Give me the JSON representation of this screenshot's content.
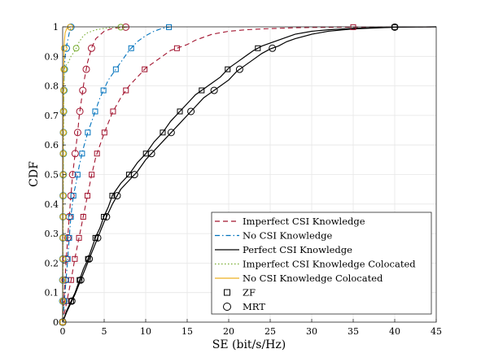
{
  "chart_data": {
    "type": "line",
    "xlabel": "SE (bit/s/Hz)",
    "ylabel": "CDF",
    "xlim": [
      0,
      45
    ],
    "ylim": [
      0,
      1
    ],
    "xticks": [
      "0",
      "5",
      "10",
      "15",
      "20",
      "25",
      "30",
      "35",
      "40",
      "45"
    ],
    "yticks": [
      "0",
      "0.1",
      "0.2",
      "0.3",
      "0.4",
      "0.5",
      "0.6",
      "0.7",
      "0.8",
      "0.9",
      "1"
    ],
    "grid": true,
    "legend_position": "bottom-right",
    "colors": {
      "imperfect": "#a2142f",
      "no_csi": "#0072bd",
      "perfect": "#000000",
      "imperfect_colocated": "#77ac30",
      "no_csi_colocated": "#edb120"
    },
    "series": [
      {
        "name": "Imperfect CSI Knowledge",
        "key": "imperfect",
        "dash": "dashed",
        "precoder": "ZF",
        "x": [
          0,
          0.5,
          1,
          1.5,
          2,
          2.5,
          3,
          3.5,
          4,
          4.5,
          5,
          6,
          7,
          8,
          9,
          10,
          11,
          12,
          13,
          14,
          15,
          16,
          17,
          18,
          19,
          20,
          22,
          24,
          26,
          28,
          30,
          35,
          45
        ],
        "y": [
          0,
          0.07,
          0.14,
          0.22,
          0.29,
          0.36,
          0.43,
          0.5,
          0.56,
          0.6,
          0.64,
          0.71,
          0.76,
          0.8,
          0.83,
          0.86,
          0.88,
          0.9,
          0.92,
          0.93,
          0.94,
          0.955,
          0.965,
          0.975,
          0.98,
          0.985,
          0.99,
          0.993,
          0.995,
          0.997,
          0.998,
          0.999,
          1
        ]
      },
      {
        "name": "",
        "key": "imperfect",
        "dash": "dashed",
        "precoder": "MRT",
        "x": [
          0,
          0.2,
          0.4,
          0.6,
          0.8,
          1,
          1.2,
          1.5,
          1.8,
          2,
          2.3,
          2.6,
          3,
          3.5,
          4,
          5,
          6,
          8
        ],
        "y": [
          0,
          0.1,
          0.2,
          0.28,
          0.36,
          0.43,
          0.5,
          0.57,
          0.64,
          0.7,
          0.76,
          0.82,
          0.88,
          0.93,
          0.96,
          0.985,
          0.995,
          1
        ]
      },
      {
        "name": "No CSI Knowledge",
        "key": "no_csi",
        "dash": "dashdot",
        "precoder": "ZF",
        "x": [
          0,
          0.2,
          0.4,
          0.6,
          0.8,
          1,
          1.3,
          1.6,
          2,
          2.5,
          3,
          3.5,
          4,
          4.5,
          5,
          5.5,
          6,
          6.5,
          7,
          7.5,
          8,
          8.5,
          9,
          9.5,
          10,
          11,
          12,
          13
        ],
        "y": [
          0,
          0.07,
          0.14,
          0.21,
          0.29,
          0.36,
          0.43,
          0.47,
          0.53,
          0.59,
          0.64,
          0.68,
          0.72,
          0.76,
          0.79,
          0.82,
          0.84,
          0.86,
          0.88,
          0.9,
          0.92,
          0.935,
          0.95,
          0.96,
          0.97,
          0.985,
          0.995,
          1
        ]
      },
      {
        "name": "",
        "key": "no_csi",
        "dash": "dashdot",
        "precoder": "MRT",
        "x": [
          0,
          0.02,
          0.05,
          0.08,
          0.1,
          0.15,
          0.2,
          0.3,
          0.5,
          0.8,
          1
        ],
        "y": [
          0,
          0.2,
          0.4,
          0.6,
          0.7,
          0.8,
          0.86,
          0.9,
          0.94,
          0.98,
          1
        ]
      },
      {
        "name": "Perfect CSI Knowledge",
        "key": "perfect",
        "dash": "solid",
        "precoder": "ZF",
        "x": [
          0,
          0.5,
          1,
          1.5,
          2,
          2.5,
          3,
          3.5,
          4,
          4.5,
          5,
          5.5,
          6,
          7,
          8,
          9,
          10,
          11,
          12,
          13,
          14,
          15,
          16,
          17,
          18,
          19,
          20,
          21,
          22,
          23,
          24,
          25,
          26,
          27,
          28,
          30,
          32,
          35,
          40,
          45
        ],
        "y": [
          0,
          0.04,
          0.07,
          0.1,
          0.14,
          0.18,
          0.21,
          0.25,
          0.29,
          0.32,
          0.36,
          0.39,
          0.43,
          0.47,
          0.5,
          0.54,
          0.57,
          0.61,
          0.64,
          0.68,
          0.71,
          0.74,
          0.77,
          0.79,
          0.81,
          0.83,
          0.86,
          0.88,
          0.9,
          0.92,
          0.935,
          0.945,
          0.955,
          0.965,
          0.975,
          0.985,
          0.99,
          0.995,
          0.999,
          1
        ]
      },
      {
        "name": "",
        "key": "perfect",
        "dash": "solid",
        "precoder": "MRT",
        "x": [
          0,
          0.5,
          1,
          1.5,
          2,
          2.5,
          3,
          3.5,
          4,
          4.5,
          5,
          5.5,
          6,
          7,
          8,
          9,
          10,
          11,
          12,
          13,
          14,
          15,
          16,
          17,
          18,
          19,
          20,
          21,
          22,
          23,
          24,
          25,
          26,
          27,
          28,
          30,
          32,
          35,
          40,
          45
        ],
        "y": [
          0,
          0.035,
          0.065,
          0.095,
          0.13,
          0.165,
          0.2,
          0.235,
          0.27,
          0.305,
          0.34,
          0.37,
          0.4,
          0.45,
          0.48,
          0.51,
          0.55,
          0.58,
          0.61,
          0.64,
          0.67,
          0.7,
          0.73,
          0.76,
          0.78,
          0.8,
          0.82,
          0.85,
          0.87,
          0.89,
          0.91,
          0.925,
          0.935,
          0.95,
          0.96,
          0.975,
          0.985,
          0.993,
          0.999,
          1
        ]
      },
      {
        "name": "Imperfect CSI Knowledge Colocated",
        "key": "imperfect_colocated",
        "dash": "dotted",
        "precoder": "",
        "x": [
          0,
          0.05,
          0.1,
          0.15,
          0.2,
          0.4,
          0.7,
          1,
          1.5,
          2,
          2.5,
          3,
          4,
          5,
          6,
          8
        ],
        "y": [
          0,
          0.3,
          0.6,
          0.8,
          0.86,
          0.87,
          0.88,
          0.9,
          0.92,
          0.95,
          0.97,
          0.98,
          0.99,
          0.995,
          0.998,
          1
        ]
      },
      {
        "name": "No CSI Knowledge Colocated",
        "key": "no_csi_colocated",
        "dash": "solid",
        "precoder": "",
        "x": [
          0,
          0.02,
          0.05,
          0.1,
          0.15,
          0.2,
          0.3,
          0.5,
          1
        ],
        "y": [
          0,
          0.3,
          0.6,
          0.8,
          0.9,
          0.95,
          0.98,
          0.995,
          1
        ]
      }
    ],
    "marker_legend": [
      {
        "symbol": "square",
        "label": "ZF"
      },
      {
        "symbol": "circle",
        "label": "MRT"
      }
    ]
  }
}
